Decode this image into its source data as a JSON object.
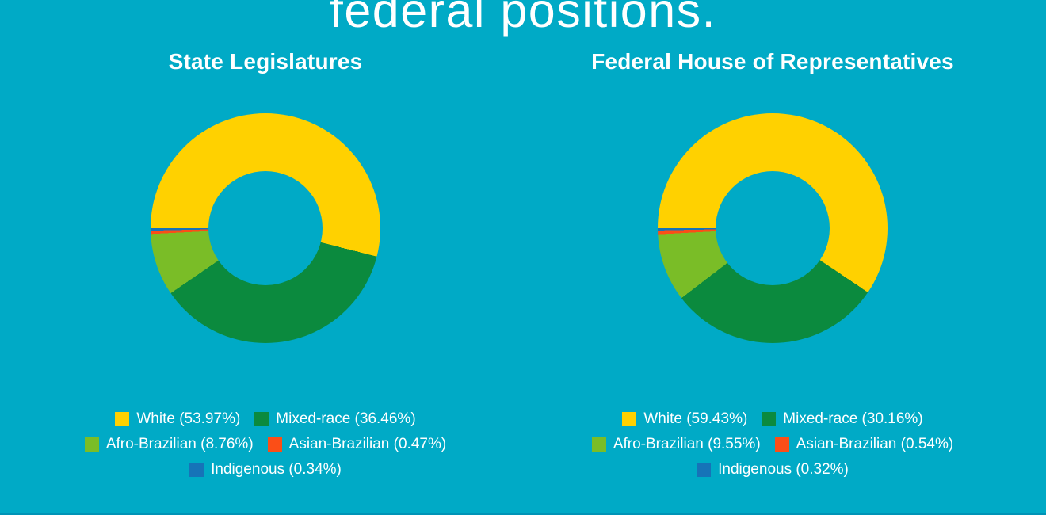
{
  "page": {
    "heading": "federal positions.",
    "background_color": "#00AAC6",
    "text_color": "#FFFFFF",
    "bottom_edge_color": "#0093B6"
  },
  "chart_data": [
    {
      "type": "pie",
      "donut": true,
      "title": "State Legislatures",
      "categories": [
        "White",
        "Mixed-race",
        "Afro-Brazilian",
        "Asian-Brazilian",
        "Indigenous"
      ],
      "values": [
        53.97,
        36.46,
        8.76,
        0.47,
        0.34
      ],
      "colors": [
        "#FFD100",
        "#0B8A3E",
        "#7ABD27",
        "#FB4E17",
        "#1673B8"
      ],
      "legend": [
        "White (53.97%)",
        "Mixed-race (36.46%)",
        "Afro-Brazilian (8.76%)",
        "Asian-Brazilian (0.47%)",
        "Indigenous (0.34%)"
      ],
      "legend_position": "bottom",
      "start_angle_deg": 270,
      "direction": "clockwise",
      "hole_ratio": 0.5
    },
    {
      "type": "pie",
      "donut": true,
      "title": "Federal House of Representatives",
      "categories": [
        "White",
        "Mixed-race",
        "Afro-Brazilian",
        "Asian-Brazilian",
        "Indigenous"
      ],
      "values": [
        59.43,
        30.16,
        9.55,
        0.54,
        0.32
      ],
      "colors": [
        "#FFD100",
        "#0B8A3E",
        "#7ABD27",
        "#FB4E17",
        "#1673B8"
      ],
      "legend": [
        "White (59.43%)",
        "Mixed-race (30.16%)",
        "Afro-Brazilian (9.55%)",
        "Asian-Brazilian (0.54%)",
        "Indigenous (0.32%)"
      ],
      "legend_position": "bottom",
      "start_angle_deg": 270,
      "direction": "clockwise",
      "hole_ratio": 0.5
    }
  ]
}
